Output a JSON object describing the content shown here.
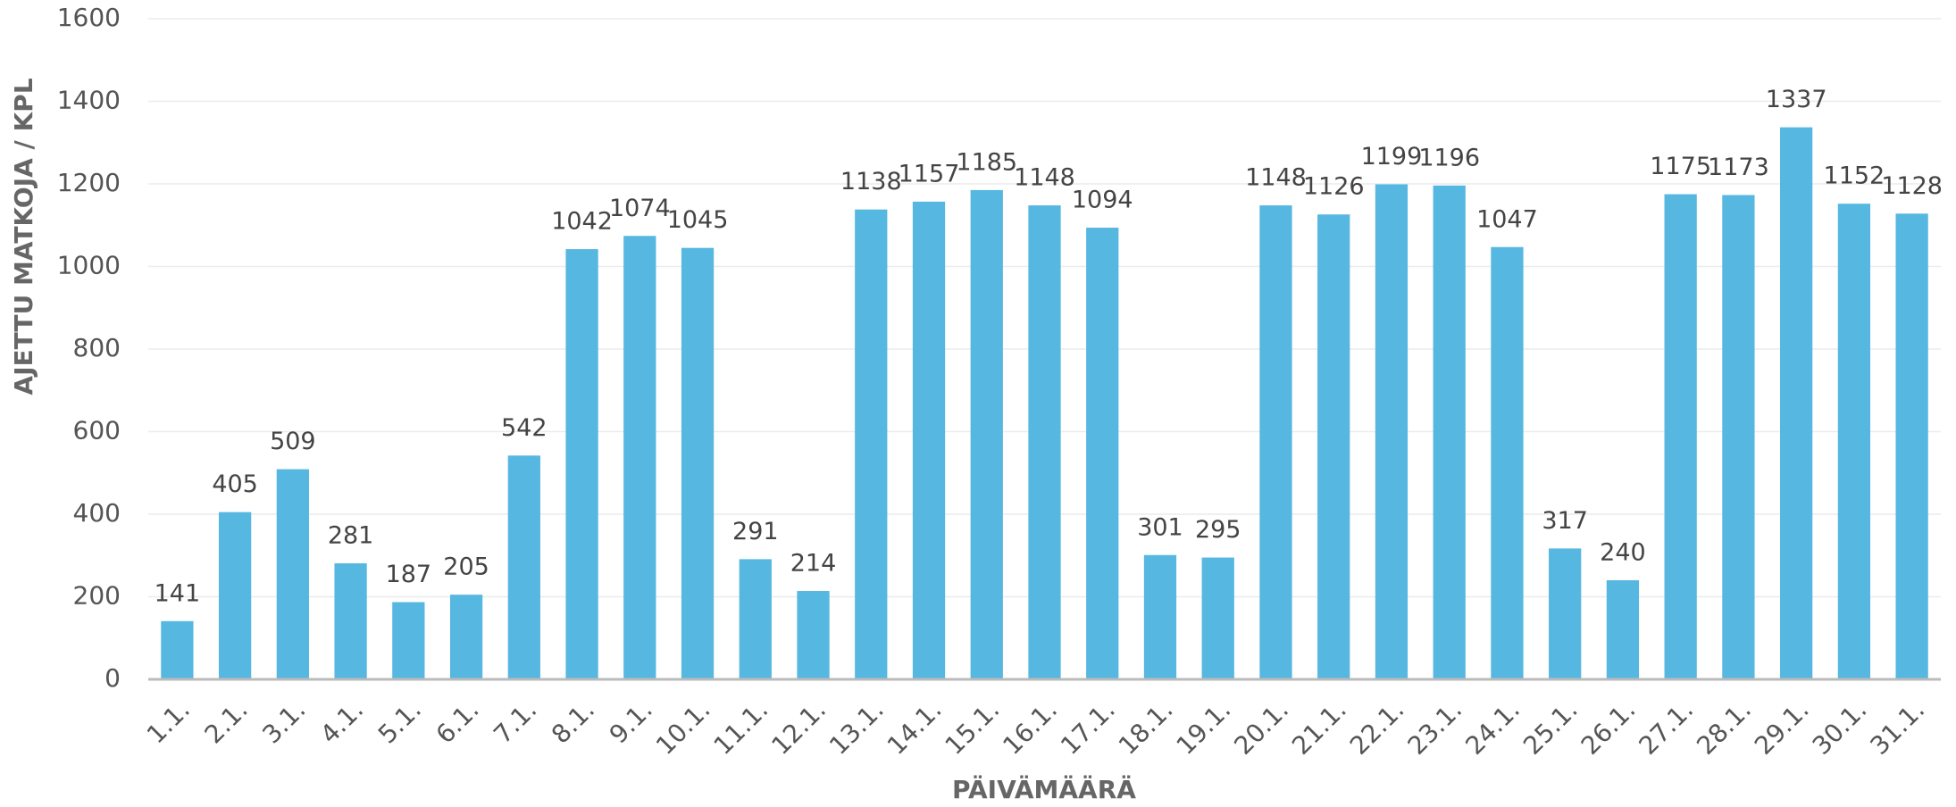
{
  "chart_data": {
    "type": "bar",
    "x_label": "PÄIVÄMÄÄRÄ",
    "y_label": "AJETTU MATKOJA / KPL",
    "categories": [
      "1.1.",
      "2.1.",
      "3.1.",
      "4.1.",
      "5.1.",
      "6.1.",
      "7.1.",
      "8.1.",
      "9.1.",
      "10.1.",
      "11.1.",
      "12.1.",
      "13.1.",
      "14.1.",
      "15.1.",
      "16.1.",
      "17.1.",
      "18.1.",
      "19.1.",
      "20.1.",
      "21.1.",
      "22.1.",
      "23.1.",
      "24.1.",
      "25.1.",
      "26.1.",
      "27.1.",
      "28.1.",
      "29.1.",
      "30.1.",
      "31.1."
    ],
    "values": [
      141,
      405,
      509,
      281,
      187,
      205,
      542,
      1042,
      1074,
      1045,
      291,
      214,
      1138,
      1157,
      1185,
      1148,
      1094,
      301,
      295,
      1148,
      1126,
      1199,
      1196,
      1047,
      317,
      240,
      1175,
      1173,
      1337,
      1152,
      1128
    ],
    "color": "#56b7e0",
    "ylim": [
      0,
      1600
    ],
    "yticks": [
      0,
      200,
      400,
      600,
      800,
      1000,
      1200,
      1400,
      1600
    ],
    "grid": true
  }
}
